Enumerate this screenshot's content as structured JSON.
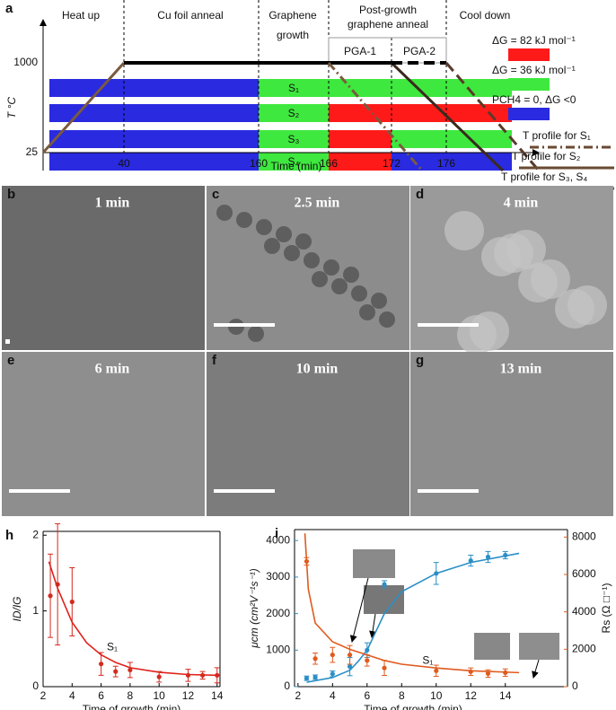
{
  "panel_a": {
    "label": "a",
    "stages": [
      [
        "Heat up"
      ],
      [
        "Cu foil anneal"
      ],
      [
        "Graphene",
        "growth"
      ],
      [
        "Post-growth",
        "graphene anneal"
      ],
      [
        "Cool down"
      ]
    ],
    "substages": [
      "PGA-1",
      "PGA-2"
    ],
    "ylabel": "T °C",
    "xlabel": "Time (min)",
    "xticks": [
      40,
      160,
      166,
      172,
      176
    ],
    "yticks": [
      1000,
      25
    ],
    "conditions": [
      {
        "label": "ΔG = 82 kJ mol⁻¹",
        "color": "#ff1a1a"
      },
      {
        "label": "ΔG = 36 kJ mol⁻¹",
        "color": "#3ee83e"
      },
      {
        "label": "PCH4 = 0, ΔG <0",
        "color": "#2a2ae0"
      }
    ],
    "samples": [
      {
        "name": "S₁",
        "colors": [
          "#2a2ae0",
          "#3ee83e",
          "#3ee83e",
          "#3ee83e"
        ]
      },
      {
        "name": "S₂",
        "colors": [
          "#2a2ae0",
          "#3ee83e",
          "#ff1a1a",
          "#ff1a1a"
        ]
      },
      {
        "name": "S₃",
        "colors": [
          "#2a2ae0",
          "#3ee83e",
          "#ff1a1a",
          "#3ee83e"
        ]
      },
      {
        "name": "S₄",
        "colors": [
          "#2a2ae0",
          "#3ee83e",
          "#ff1a1a",
          "#2a2ae0"
        ]
      }
    ],
    "profiles": [
      "T profile for S₁",
      "T profile for S₂",
      "T profile for S₃, S₄"
    ]
  },
  "micrographs": [
    {
      "panel": "b",
      "label": "1 min"
    },
    {
      "panel": "c",
      "label": "2.5 min"
    },
    {
      "panel": "d",
      "label": "4 min"
    },
    {
      "panel": "e",
      "label": "6 min"
    },
    {
      "panel": "f",
      "label": "10 min"
    },
    {
      "panel": "g",
      "label": "13 min"
    }
  ],
  "chart_data": [
    {
      "type": "errorbar",
      "panel": "h",
      "xlabel": "Time of growth (min)",
      "ylabel": "ID/IG",
      "x": [
        2.5,
        3,
        4,
        6,
        7,
        8,
        10,
        12,
        13,
        14
      ],
      "xlim": [
        2,
        14.2
      ],
      "xticks": [
        2,
        4,
        6,
        8,
        10,
        12,
        14
      ],
      "ylim": [
        0,
        2.05
      ],
      "yticks": [
        0,
        1,
        2
      ],
      "series": [
        {
          "color": "#d42a1e",
          "values": [
            1.2,
            1.35,
            1.12,
            0.3,
            0.2,
            0.22,
            0.13,
            0.15,
            0.15,
            0.15
          ],
          "errors": [
            0.55,
            0.8,
            0.45,
            0.15,
            0.07,
            0.1,
            0.07,
            0.08,
            0.05,
            0.1
          ]
        }
      ],
      "fits": [
        {
          "color": "#e0201a",
          "x": [
            2.4,
            3,
            4,
            5,
            6,
            7,
            8,
            10,
            12,
            14
          ],
          "values": [
            1.65,
            1.3,
            0.85,
            0.58,
            0.42,
            0.32,
            0.25,
            0.19,
            0.16,
            0.15
          ]
        }
      ],
      "annotations": [
        {
          "text": "S₁",
          "x": 6.4,
          "y": 0.52
        }
      ]
    },
    {
      "type": "errorbar",
      "panel": "i",
      "xlabel": "Time of growth (min)",
      "ylabel": "μcm (cm²V⁻¹s⁻¹)",
      "y2label": "Rs (Ω □⁻¹)",
      "x": [
        2.5,
        3,
        4,
        5,
        6,
        7,
        10,
        12,
        13,
        14
      ],
      "xlim": [
        1.8,
        17.6
      ],
      "xticks": [
        2,
        4,
        6,
        8,
        10,
        12,
        14
      ],
      "ylim": [
        0,
        4300
      ],
      "yticks": [
        0,
        1000,
        2000,
        3000,
        4000
      ],
      "ycolor": "#2a8fc6",
      "y2lim": [
        0,
        8400
      ],
      "y2ticks": [
        0,
        2000,
        4000,
        6000,
        8000
      ],
      "y2color": "#e05a1e",
      "series": [
        {
          "color": "#2a8fc6",
          "values": [
            230,
            260,
            350,
            550,
            1000,
            2800,
            3100,
            3450,
            3550,
            3600
          ],
          "errors": [
            60,
            60,
            80,
            250,
            200,
            100,
            300,
            150,
            150,
            100
          ]
        },
        {
          "color": "#e05a1e",
          "axis": "y2",
          "values": [
            6700,
            1500,
            1700,
            1700,
            1400,
            1000,
            850,
            800,
            700,
            750
          ],
          "errors": [
            200,
            300,
            400,
            500,
            300,
            400,
            300,
            200,
            200,
            200
          ]
        }
      ],
      "fits": [
        {
          "color": "#2a8fc6",
          "x": [
            2.5,
            4,
            5,
            5.5,
            6,
            6.5,
            7,
            8,
            10,
            12,
            14.8
          ],
          "values": [
            120,
            250,
            450,
            700,
            1000,
            1500,
            2000,
            2600,
            3100,
            3400,
            3650
          ]
        },
        {
          "color": "#e05a1e",
          "axis": "y2",
          "x": [
            2.4,
            2.6,
            3,
            4,
            5,
            6,
            7,
            8,
            10,
            12,
            14.8
          ],
          "values": [
            8200,
            5200,
            3400,
            2400,
            2000,
            1700,
            1400,
            1200,
            1000,
            850,
            750
          ]
        }
      ],
      "annotations": [
        {
          "text": "S₁",
          "x": 9.2,
          "y": 700
        }
      ]
    }
  ]
}
